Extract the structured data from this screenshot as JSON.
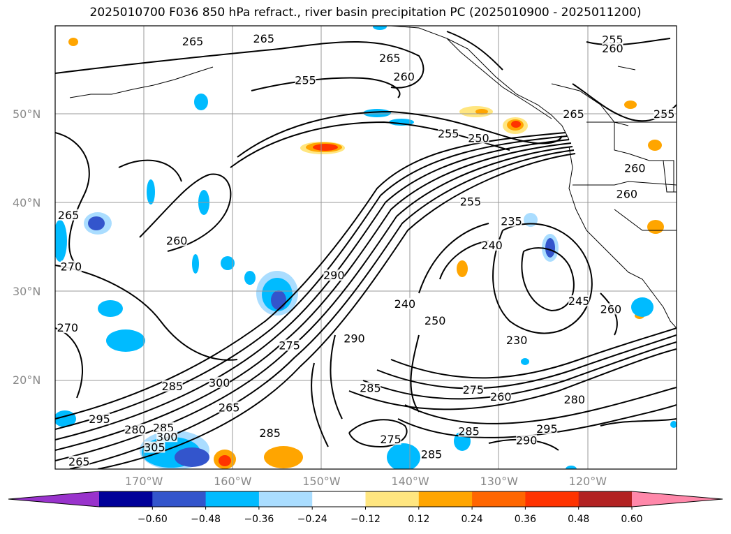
{
  "title": "2025010700 F036 850 hPa refract., river basin precipitation PC (2025010900 - 2025011200)",
  "map": {
    "lon_range": [
      -180,
      -110
    ],
    "lat_range": [
      10,
      60
    ],
    "lat_ticks": [
      {
        "value": 20,
        "label": "20°N"
      },
      {
        "value": 30,
        "label": "30°N"
      },
      {
        "value": 40,
        "label": "40°N"
      },
      {
        "value": 50,
        "label": "50°N"
      }
    ],
    "lon_ticks": [
      {
        "value": -170,
        "label": "170°W"
      },
      {
        "value": -160,
        "label": "160°W"
      },
      {
        "value": -150,
        "label": "150°W"
      },
      {
        "value": -140,
        "label": "140°W"
      },
      {
        "value": -130,
        "label": "130°W"
      },
      {
        "value": -120,
        "label": "120°W"
      }
    ],
    "contour_labels": [
      {
        "text": "265",
        "lon": -164.5,
        "lat": 58.2
      },
      {
        "text": "265",
        "lon": -156.5,
        "lat": 58.5
      },
      {
        "text": "265",
        "lon": -142.3,
        "lat": 56.3
      },
      {
        "text": "260",
        "lon": -140.7,
        "lat": 54.2
      },
      {
        "text": "255",
        "lon": -151.8,
        "lat": 53.8
      },
      {
        "text": "255",
        "lon": -117.2,
        "lat": 58.4
      },
      {
        "text": "260",
        "lon": -117.2,
        "lat": 57.4
      },
      {
        "text": "265",
        "lon": -121.6,
        "lat": 50.0
      },
      {
        "text": "255",
        "lon": -111.4,
        "lat": 50.0
      },
      {
        "text": "255",
        "lon": -135.7,
        "lat": 47.8
      },
      {
        "text": "250",
        "lon": -132.3,
        "lat": 47.3
      },
      {
        "text": "260",
        "lon": -114.7,
        "lat": 43.9
      },
      {
        "text": "260",
        "lon": -115.6,
        "lat": 41.0
      },
      {
        "text": "255",
        "lon": -133.2,
        "lat": 40.1
      },
      {
        "text": "235",
        "lon": -128.6,
        "lat": 37.9
      },
      {
        "text": "240",
        "lon": -130.8,
        "lat": 35.2
      },
      {
        "text": "265",
        "lon": -178.5,
        "lat": 38.6
      },
      {
        "text": "260",
        "lon": -166.3,
        "lat": 35.7
      },
      {
        "text": "270",
        "lon": -178.2,
        "lat": 32.8
      },
      {
        "text": "270",
        "lon": -178.6,
        "lat": 25.9
      },
      {
        "text": "290",
        "lon": -148.6,
        "lat": 31.8
      },
      {
        "text": "240",
        "lon": -140.6,
        "lat": 28.6
      },
      {
        "text": "250",
        "lon": -137.2,
        "lat": 26.7
      },
      {
        "text": "245",
        "lon": -121.0,
        "lat": 28.9
      },
      {
        "text": "260",
        "lon": -117.4,
        "lat": 28.0
      },
      {
        "text": "230",
        "lon": -128.0,
        "lat": 24.5
      },
      {
        "text": "290",
        "lon": -146.3,
        "lat": 24.7
      },
      {
        "text": "275",
        "lon": -153.6,
        "lat": 23.9
      },
      {
        "text": "300",
        "lon": -161.5,
        "lat": 19.7
      },
      {
        "text": "285",
        "lon": -166.8,
        "lat": 19.3
      },
      {
        "text": "285",
        "lon": -144.5,
        "lat": 19.1
      },
      {
        "text": "275",
        "lon": -132.9,
        "lat": 18.9
      },
      {
        "text": "260",
        "lon": -129.8,
        "lat": 18.1
      },
      {
        "text": "280",
        "lon": -121.5,
        "lat": 17.8
      },
      {
        "text": "295",
        "lon": -175.0,
        "lat": 15.6
      },
      {
        "text": "265",
        "lon": -160.4,
        "lat": 16.9
      },
      {
        "text": "285",
        "lon": -133.4,
        "lat": 14.2
      },
      {
        "text": "295",
        "lon": -124.6,
        "lat": 14.5
      },
      {
        "text": "290",
        "lon": -126.9,
        "lat": 13.2
      },
      {
        "text": "285",
        "lon": -155.8,
        "lat": 14.0
      },
      {
        "text": "275",
        "lon": -142.2,
        "lat": 13.3
      },
      {
        "text": "285",
        "lon": -137.6,
        "lat": 11.6
      },
      {
        "text": "285",
        "lon": -167.8,
        "lat": 14.6
      },
      {
        "text": "280",
        "lon": -171.0,
        "lat": 14.4
      },
      {
        "text": "300",
        "lon": -167.4,
        "lat": 13.6
      },
      {
        "text": "305",
        "lon": -168.8,
        "lat": 12.4
      },
      {
        "text": "265",
        "lon": -177.3,
        "lat": 10.8
      }
    ]
  },
  "colorbar": {
    "colors": [
      "#9933cc",
      "#000099",
      "#3355cc",
      "#00bbff",
      "#aaddff",
      "#ffffff",
      "#ffe680",
      "#ffa500",
      "#ff6600",
      "#ff3300",
      "#b22222",
      "#ff88aa"
    ],
    "tick_values": [
      -0.6,
      -0.48,
      -0.36,
      -0.24,
      -0.12,
      0.12,
      0.24,
      0.36,
      0.48,
      0.6
    ],
    "tick_labels": [
      "−0.60",
      "−0.48",
      "−0.36",
      "−0.24",
      "−0.12",
      "0.12",
      "0.24",
      "0.36",
      "0.48",
      "0.60"
    ]
  }
}
